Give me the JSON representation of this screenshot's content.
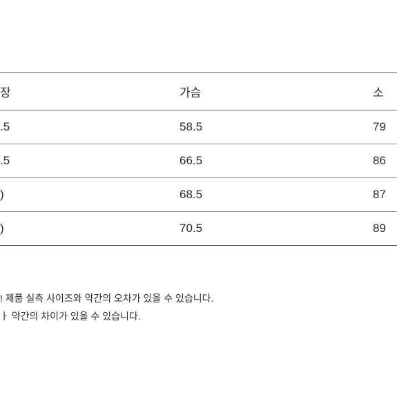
{
  "table": {
    "columns": [
      "장",
      "가슴",
      "소"
    ],
    "rows": [
      [
        ".5",
        "58.5",
        "79"
      ],
      [
        ".5",
        "66.5",
        "86"
      ],
      [
        ")",
        "68.5",
        "87"
      ],
      [
        ")",
        "70.5",
        "89"
      ]
    ],
    "border_color_outer": "#555555",
    "border_color_inner": "#888888",
    "font_size_header": 17,
    "font_size_cell": 17,
    "background_color": "#ffffff",
    "text_color": "#2a2a2a"
  },
  "notes": {
    "line1": "! 제품 실측 사이즈와 약간의 오차가 있을 수 있습니다.",
    "line2": "ㅏ 약간의 차이가 있을 수 있습니다.",
    "font_size": 14,
    "text_color": "#2a2a2a"
  }
}
